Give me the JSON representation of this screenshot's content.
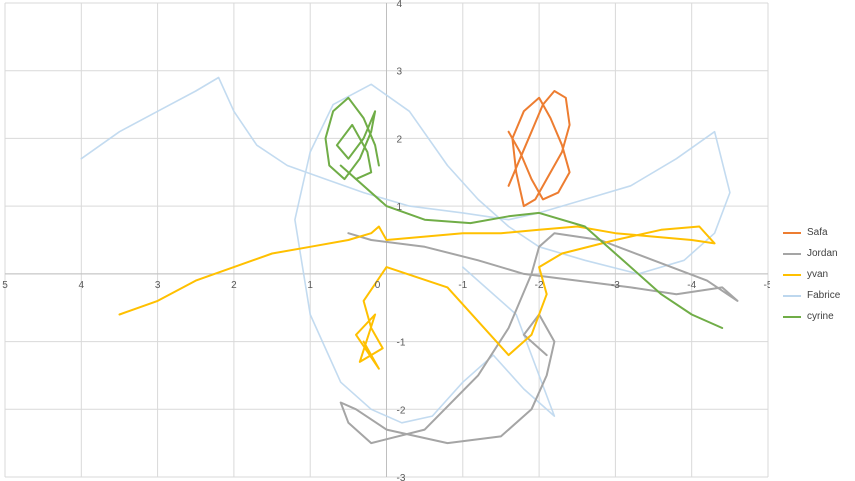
{
  "chart_data": {
    "type": "line",
    "title": "",
    "xlabel": "",
    "ylabel": "",
    "xlim": [
      5,
      -5
    ],
    "ylim": [
      -3,
      4
    ],
    "x_reversed": true,
    "grid": true,
    "legend_position": "right",
    "x_ticks": [
      "5",
      "4",
      "3",
      "2",
      "1",
      "0",
      "-1",
      "-2",
      "-3",
      "-4",
      "-5"
    ],
    "y_ticks": [
      "-3",
      "-2",
      "-1",
      "0",
      "1",
      "2",
      "3",
      "4"
    ],
    "series": [
      {
        "name": "Safa",
        "color": "#ED7D31",
        "x": [
          -1.6,
          -1.75,
          -1.9,
          -2.05,
          -2.2,
          -2.35,
          -2.4,
          -2.3,
          -2.1,
          -1.95,
          -1.8,
          -1.7,
          -1.65,
          -1.8,
          -2.0,
          -2.15,
          -2.3,
          -2.4,
          -2.25,
          -2.05,
          -1.9,
          -1.75,
          -1.6
        ],
        "y": [
          1.3,
          1.7,
          2.1,
          2.5,
          2.7,
          2.6,
          2.2,
          1.8,
          1.4,
          1.1,
          1.0,
          1.5,
          2.0,
          2.4,
          2.6,
          2.3,
          1.9,
          1.5,
          1.2,
          1.1,
          1.4,
          1.8,
          2.1
        ]
      },
      {
        "name": "Jordan",
        "color": "#A5A5A5",
        "x": [
          0.5,
          0.2,
          -0.5,
          -1.2,
          -1.8,
          -2.5,
          -3.2,
          -3.8,
          -4.4,
          -4.6,
          -4.2,
          -3.5,
          -2.8,
          -2.2,
          -2.0,
          -1.9,
          -1.6,
          -1.2,
          -0.5,
          0.2,
          0.5,
          0.6,
          0.4,
          0.0,
          -0.8,
          -1.5,
          -1.9,
          -2.1,
          -2.2,
          -2.0,
          -1.8,
          -2.1
        ],
        "y": [
          0.6,
          0.5,
          0.4,
          0.2,
          0.0,
          -0.1,
          -0.2,
          -0.3,
          -0.2,
          -0.4,
          -0.1,
          0.2,
          0.5,
          0.6,
          0.4,
          0.0,
          -0.8,
          -1.5,
          -2.3,
          -2.5,
          -2.2,
          -1.9,
          -2.0,
          -2.3,
          -2.5,
          -2.4,
          -2.0,
          -1.5,
          -1.0,
          -0.6,
          -0.9,
          -1.2
        ]
      },
      {
        "name": "yvan",
        "color": "#FFC000",
        "x": [
          3.5,
          3.0,
          2.5,
          2.0,
          1.5,
          1.0,
          0.5,
          0.2,
          0.1,
          0.0,
          -0.5,
          -1.0,
          -1.5,
          -2.0,
          -2.5,
          -3.0,
          -3.5,
          -4.0,
          -4.3,
          -4.1,
          -3.6,
          -3.0,
          -2.3,
          -2.0,
          -2.1,
          -1.9,
          -1.6,
          -1.2,
          -0.8,
          0.0,
          0.3,
          0.2,
          0.05,
          0.35,
          0.15,
          0.4,
          0.1,
          0.3
        ],
        "y": [
          -0.6,
          -0.4,
          -0.1,
          0.1,
          0.3,
          0.4,
          0.5,
          0.6,
          0.7,
          0.5,
          0.55,
          0.6,
          0.6,
          0.65,
          0.7,
          0.6,
          0.55,
          0.5,
          0.45,
          0.7,
          0.65,
          0.5,
          0.3,
          0.1,
          -0.3,
          -0.9,
          -1.2,
          -0.7,
          -0.2,
          0.1,
          -0.4,
          -0.8,
          -1.1,
          -1.3,
          -0.6,
          -0.9,
          -1.4,
          -1.0
        ]
      },
      {
        "name": "Fabrice",
        "color": "#BDD7EE",
        "x": [
          4.0,
          3.5,
          3.0,
          2.5,
          2.2,
          2.0,
          1.7,
          1.3,
          0.8,
          0.3,
          -0.3,
          -1.0,
          -1.6,
          -2.0,
          -2.6,
          -3.2,
          -3.8,
          -4.3,
          -4.5,
          -4.3,
          -3.9,
          -3.3,
          -2.6,
          -2.0,
          -1.6,
          -1.2,
          -0.8,
          -0.3,
          0.2,
          0.7,
          1.0,
          1.2,
          1.0,
          0.6,
          0.2,
          -0.2,
          -0.6,
          -1.0,
          -1.4,
          -1.8,
          -2.2,
          -1.7,
          -1.0
        ],
        "y": [
          1.7,
          2.1,
          2.4,
          2.7,
          2.9,
          2.4,
          1.9,
          1.6,
          1.4,
          1.2,
          1.0,
          0.9,
          0.8,
          0.9,
          1.1,
          1.3,
          1.7,
          2.1,
          1.2,
          0.6,
          0.2,
          0.0,
          0.2,
          0.4,
          0.7,
          1.1,
          1.6,
          2.4,
          2.8,
          2.5,
          1.8,
          0.8,
          -0.6,
          -1.6,
          -2.0,
          -2.2,
          -2.1,
          -1.6,
          -1.2,
          -1.7,
          -2.1,
          -0.6,
          0.1
        ]
      },
      {
        "name": "cyrine",
        "color": "#70AD47",
        "x": [
          0.1,
          0.15,
          0.3,
          0.5,
          0.7,
          0.8,
          0.75,
          0.55,
          0.35,
          0.2,
          0.15,
          0.3,
          0.5,
          0.65,
          0.45,
          0.25,
          0.2,
          0.4,
          0.6,
          0.0,
          -0.5,
          -1.1,
          -1.6,
          -2.0,
          -2.6,
          -3.1,
          -3.6,
          -4.0,
          -4.4
        ],
        "y": [
          1.6,
          1.9,
          2.3,
          2.6,
          2.4,
          2.0,
          1.6,
          1.4,
          1.7,
          2.1,
          2.4,
          2.0,
          1.7,
          1.9,
          2.2,
          1.8,
          1.5,
          1.4,
          1.6,
          1.0,
          0.8,
          0.75,
          0.85,
          0.9,
          0.7,
          0.2,
          -0.3,
          -0.6,
          -0.8
        ]
      }
    ]
  }
}
